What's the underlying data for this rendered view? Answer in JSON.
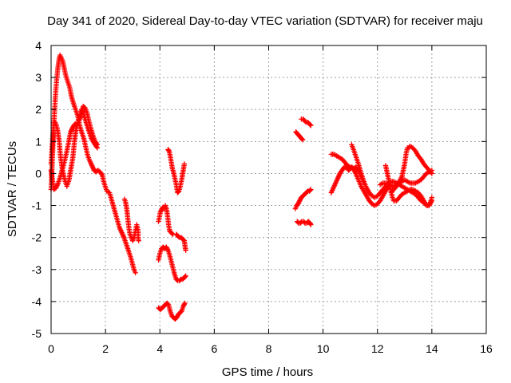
{
  "chart_data": {
    "type": "scatter",
    "title": "Day 341 of 2020, Sidereal Day-to-day VTEC variation (SDTVAR) for receiver maju",
    "xlabel": "GPS time / hours",
    "ylabel": "SDTVAR / TECUs",
    "xlim": [
      0,
      16
    ],
    "ylim": [
      -5,
      4
    ],
    "xticks": [
      "0",
      "2",
      "4",
      "6",
      "8",
      "10",
      "12",
      "14",
      "16"
    ],
    "yticks": [
      "-5",
      "-4",
      "-3",
      "-2",
      "-1",
      "0",
      "1",
      "2",
      "3",
      "4"
    ],
    "grid": true,
    "legend": "none",
    "marker": "plus",
    "color": "#ff0000",
    "series": [
      {
        "x": [
          0.0,
          0.05,
          0.1,
          0.15,
          0.2,
          0.25,
          0.3,
          0.33,
          0.38,
          0.43,
          0.48,
          0.53,
          0.6,
          0.68,
          0.75,
          0.82,
          0.9,
          0.98,
          1.05,
          1.12,
          1.2,
          1.28,
          1.35,
          1.42,
          1.5,
          1.58,
          1.65,
          1.72,
          1.8,
          1.88,
          1.95,
          2.05,
          2.15,
          2.25,
          2.35,
          2.45,
          2.52,
          2.6,
          2.68,
          2.76,
          2.84,
          2.92,
          3.0,
          3.05,
          3.1
        ],
        "y": [
          -0.5,
          0.5,
          1.5,
          2.3,
          2.9,
          3.3,
          3.6,
          3.7,
          3.6,
          3.5,
          3.3,
          3.1,
          2.9,
          2.7,
          2.4,
          2.2,
          2.0,
          1.8,
          1.5,
          1.3,
          1.1,
          0.8,
          0.55,
          0.4,
          0.25,
          0.1,
          0.05,
          0.1,
          0.05,
          -0.05,
          -0.3,
          -0.55,
          -0.6,
          -0.9,
          -1.2,
          -1.5,
          -1.7,
          -1.85,
          -2.0,
          -2.2,
          -2.4,
          -2.6,
          -2.85,
          -3.0,
          -3.1
        ]
      },
      {
        "x": [
          0.0,
          0.03,
          0.06,
          0.1,
          0.15,
          0.2,
          0.25,
          0.3,
          0.35,
          0.42,
          0.5,
          0.58,
          0.66,
          0.72,
          0.8,
          0.86,
          0.92,
          0.98,
          1.05,
          1.12,
          1.18,
          1.25,
          1.32,
          1.4,
          1.48,
          1.55,
          1.62,
          1.7
        ],
        "y": [
          0.3,
          0.7,
          1.1,
          1.6,
          1.6,
          1.5,
          1.3,
          1.0,
          0.5,
          0.1,
          -0.2,
          -0.4,
          -0.2,
          0.1,
          0.5,
          1.0,
          1.4,
          1.6,
          1.8,
          2.0,
          1.9,
          1.7,
          1.5,
          1.3,
          1.1,
          1.0,
          0.9,
          0.8
        ]
      },
      {
        "x": [
          0.0,
          0.05,
          0.1,
          0.18,
          0.26,
          0.34,
          0.42,
          0.5,
          0.58,
          0.65,
          0.72,
          0.8,
          0.88,
          0.95,
          1.02,
          1.1,
          1.18,
          1.25,
          1.32,
          1.4,
          1.48,
          1.55,
          1.62,
          1.7
        ],
        "y": [
          0.1,
          -0.2,
          -0.5,
          -0.45,
          -0.3,
          -0.1,
          0.15,
          0.4,
          0.7,
          1.0,
          1.3,
          1.45,
          1.55,
          1.5,
          1.65,
          1.8,
          2.1,
          2.05,
          1.9,
          1.6,
          1.35,
          1.15,
          1.0,
          0.9
        ]
      },
      {
        "x": [
          2.7,
          2.74,
          2.78,
          2.82,
          2.86,
          2.9,
          2.95,
          3.0,
          3.05,
          3.1,
          3.15,
          3.2,
          3.2,
          3.22
        ],
        "y": [
          -0.8,
          -0.9,
          -1.1,
          -1.4,
          -1.7,
          -1.9,
          -2.0,
          -2.1,
          -2.0,
          -1.8,
          -1.6,
          -1.8,
          -2.0,
          -2.1
        ]
      },
      {
        "x": [
          3.95,
          4.02,
          4.08,
          4.12,
          4.16,
          4.2,
          4.24,
          4.28,
          4.32,
          4.36,
          4.42,
          4.48
        ],
        "y": [
          -1.5,
          -1.2,
          -1.1,
          -1.05,
          -1.1,
          -1.0,
          -1.1,
          -1.3,
          -1.6,
          -1.8,
          -1.85,
          -1.9
        ]
      },
      {
        "x": [
          4.6,
          4.66,
          4.72,
          4.78,
          4.84,
          4.9,
          4.93,
          4.95
        ],
        "y": [
          -1.9,
          -1.95,
          -2.0,
          -2.0,
          -2.05,
          -2.1,
          -2.3,
          -2.4
        ]
      },
      {
        "x": [
          3.95,
          4.0,
          4.06,
          4.12,
          4.18,
          4.24,
          4.3,
          4.36,
          4.42,
          4.48,
          4.54,
          4.6,
          4.66,
          4.72,
          4.78,
          4.84,
          4.9,
          4.95
        ],
        "y": [
          -2.7,
          -2.5,
          -2.35,
          -2.3,
          -2.35,
          -2.3,
          -2.4,
          -2.55,
          -2.75,
          -2.95,
          -3.15,
          -3.3,
          -3.35,
          -3.35,
          -3.3,
          -3.3,
          -3.25,
          -3.2
        ]
      },
      {
        "x": [
          3.95,
          4.02,
          4.08,
          4.14,
          4.2,
          4.26,
          4.32,
          4.38,
          4.44,
          4.5,
          4.56,
          4.62,
          4.68,
          4.74,
          4.8,
          4.86,
          4.92
        ],
        "y": [
          -4.2,
          -4.25,
          -4.2,
          -4.15,
          -4.1,
          -4.05,
          -4.1,
          -4.3,
          -4.45,
          -4.5,
          -4.55,
          -4.5,
          -4.4,
          -4.35,
          -4.3,
          -4.15,
          -4.05
        ]
      },
      {
        "x": [
          4.3,
          4.34,
          4.38,
          4.42,
          4.46,
          4.5,
          4.55,
          4.6,
          4.65,
          4.7,
          4.75,
          4.8,
          4.85,
          4.9
        ],
        "y": [
          0.75,
          0.7,
          0.55,
          0.35,
          0.15,
          0.05,
          -0.15,
          -0.35,
          -0.6,
          -0.55,
          -0.4,
          -0.2,
          0.05,
          0.3
        ]
      },
      {
        "x": [
          9.0,
          9.05,
          9.1,
          9.15,
          9.2,
          9.25
        ],
        "y": [
          1.3,
          1.25,
          1.2,
          1.15,
          1.1,
          1.05
        ]
      },
      {
        "x": [
          9.2,
          9.26,
          9.32,
          9.38,
          9.44,
          9.5,
          9.55
        ],
        "y": [
          1.7,
          1.7,
          1.65,
          1.6,
          1.6,
          1.55,
          1.5
        ]
      },
      {
        "x": [
          8.98,
          9.03,
          9.08,
          9.14,
          9.2,
          9.26,
          9.32,
          9.38,
          9.44,
          9.5,
          9.55
        ],
        "y": [
          -1.1,
          -1.0,
          -0.95,
          -0.85,
          -0.75,
          -0.7,
          -0.65,
          -0.6,
          -0.55,
          -0.55,
          -0.5
        ]
      },
      {
        "x": [
          9.05,
          9.1,
          9.16,
          9.22,
          9.28,
          9.34,
          9.4,
          9.46,
          9.52,
          9.55
        ],
        "y": [
          -1.5,
          -1.55,
          -1.55,
          -1.5,
          -1.5,
          -1.55,
          -1.55,
          -1.5,
          -1.55,
          -1.6
        ]
      },
      {
        "x": [
          10.3,
          10.38,
          10.46,
          10.54,
          10.62,
          10.7,
          10.78,
          10.86,
          10.94,
          11.0,
          11.06,
          11.12,
          11.2,
          11.3,
          11.4,
          11.5,
          11.6,
          11.7,
          11.8,
          11.9,
          12.0,
          12.1,
          12.2,
          12.3,
          12.4
        ],
        "y": [
          -0.6,
          -0.45,
          -0.3,
          -0.15,
          0.0,
          0.1,
          0.2,
          0.2,
          0.1,
          0.15,
          0.2,
          0.15,
          0.0,
          -0.2,
          -0.4,
          -0.55,
          -0.7,
          -0.85,
          -0.95,
          -1.0,
          -0.95,
          -0.85,
          -0.7,
          -0.55,
          -0.4
        ]
      },
      {
        "x": [
          10.3,
          10.4,
          10.5,
          10.6,
          10.7,
          10.8,
          10.9,
          11.0,
          11.1,
          11.2,
          11.3,
          11.4,
          11.5
        ],
        "y": [
          0.6,
          0.6,
          0.55,
          0.5,
          0.45,
          0.35,
          0.25,
          0.2,
          0.15,
          0.2,
          0.1,
          -0.1,
          -0.3
        ]
      },
      {
        "x": [
          11.05,
          11.12,
          11.2,
          11.3,
          11.4,
          11.5,
          11.6,
          11.7,
          11.8,
          11.9,
          12.0,
          12.1,
          12.2,
          12.3,
          12.4,
          12.5,
          12.6,
          12.7,
          12.8,
          12.9,
          13.0,
          13.1,
          13.2,
          13.3,
          13.4,
          13.5,
          13.6,
          13.7
        ],
        "y": [
          0.9,
          0.75,
          0.55,
          0.3,
          0.0,
          -0.25,
          -0.45,
          -0.6,
          -0.7,
          -0.75,
          -0.7,
          -0.6,
          -0.5,
          -0.4,
          -0.3,
          -0.25,
          -0.25,
          -0.3,
          -0.35,
          -0.4,
          -0.45,
          -0.5,
          -0.55,
          -0.6,
          -0.65,
          -0.75,
          -0.85,
          -0.9
        ]
      },
      {
        "x": [
          12.3,
          12.35,
          12.4,
          12.45,
          12.5,
          12.55,
          12.6,
          12.7,
          12.8,
          12.9,
          13.0,
          13.1,
          13.2,
          13.3,
          13.4,
          13.5,
          13.6,
          13.7,
          13.8,
          13.9,
          14.0
        ],
        "y": [
          0.25,
          0.05,
          -0.15,
          -0.35,
          -0.55,
          -0.75,
          -0.85,
          -0.85,
          -0.75,
          -0.65,
          -0.6,
          -0.55,
          -0.5,
          -0.5,
          -0.55,
          -0.6,
          -0.7,
          -0.85,
          -1.0,
          -1.0,
          -0.85
        ]
      },
      {
        "x": [
          12.1,
          12.2,
          12.3,
          12.4,
          12.5,
          12.6,
          12.7,
          12.8,
          12.9,
          13.0,
          13.05,
          13.1,
          13.15,
          13.2,
          13.3,
          13.4,
          13.5,
          13.6,
          13.7,
          13.8,
          13.9,
          14.0
        ],
        "y": [
          -0.35,
          -0.3,
          -0.3,
          -0.35,
          -0.4,
          -0.4,
          -0.35,
          -0.25,
          -0.1,
          0.3,
          0.6,
          0.8,
          0.8,
          0.85,
          0.8,
          0.7,
          0.55,
          0.45,
          0.3,
          0.2,
          0.1,
          0.0
        ]
      },
      {
        "x": [
          12.5,
          12.6,
          12.7,
          12.8,
          12.9,
          13.0,
          13.1,
          13.2,
          13.3,
          13.4,
          13.5,
          13.6,
          13.7,
          13.8,
          13.9,
          14.0
        ],
        "y": [
          -0.6,
          -0.5,
          -0.4,
          -0.3,
          -0.25,
          -0.2,
          -0.25,
          -0.3,
          -0.3,
          -0.3,
          -0.25,
          -0.2,
          -0.1,
          0.0,
          0.05,
          0.1
        ]
      },
      {
        "x": [
          13.45,
          13.55,
          13.65,
          13.75,
          13.85,
          13.95,
          14.0
        ],
        "y": [
          -0.7,
          -0.75,
          -0.85,
          -0.95,
          -1.0,
          -0.9,
          -0.75
        ]
      }
    ]
  }
}
